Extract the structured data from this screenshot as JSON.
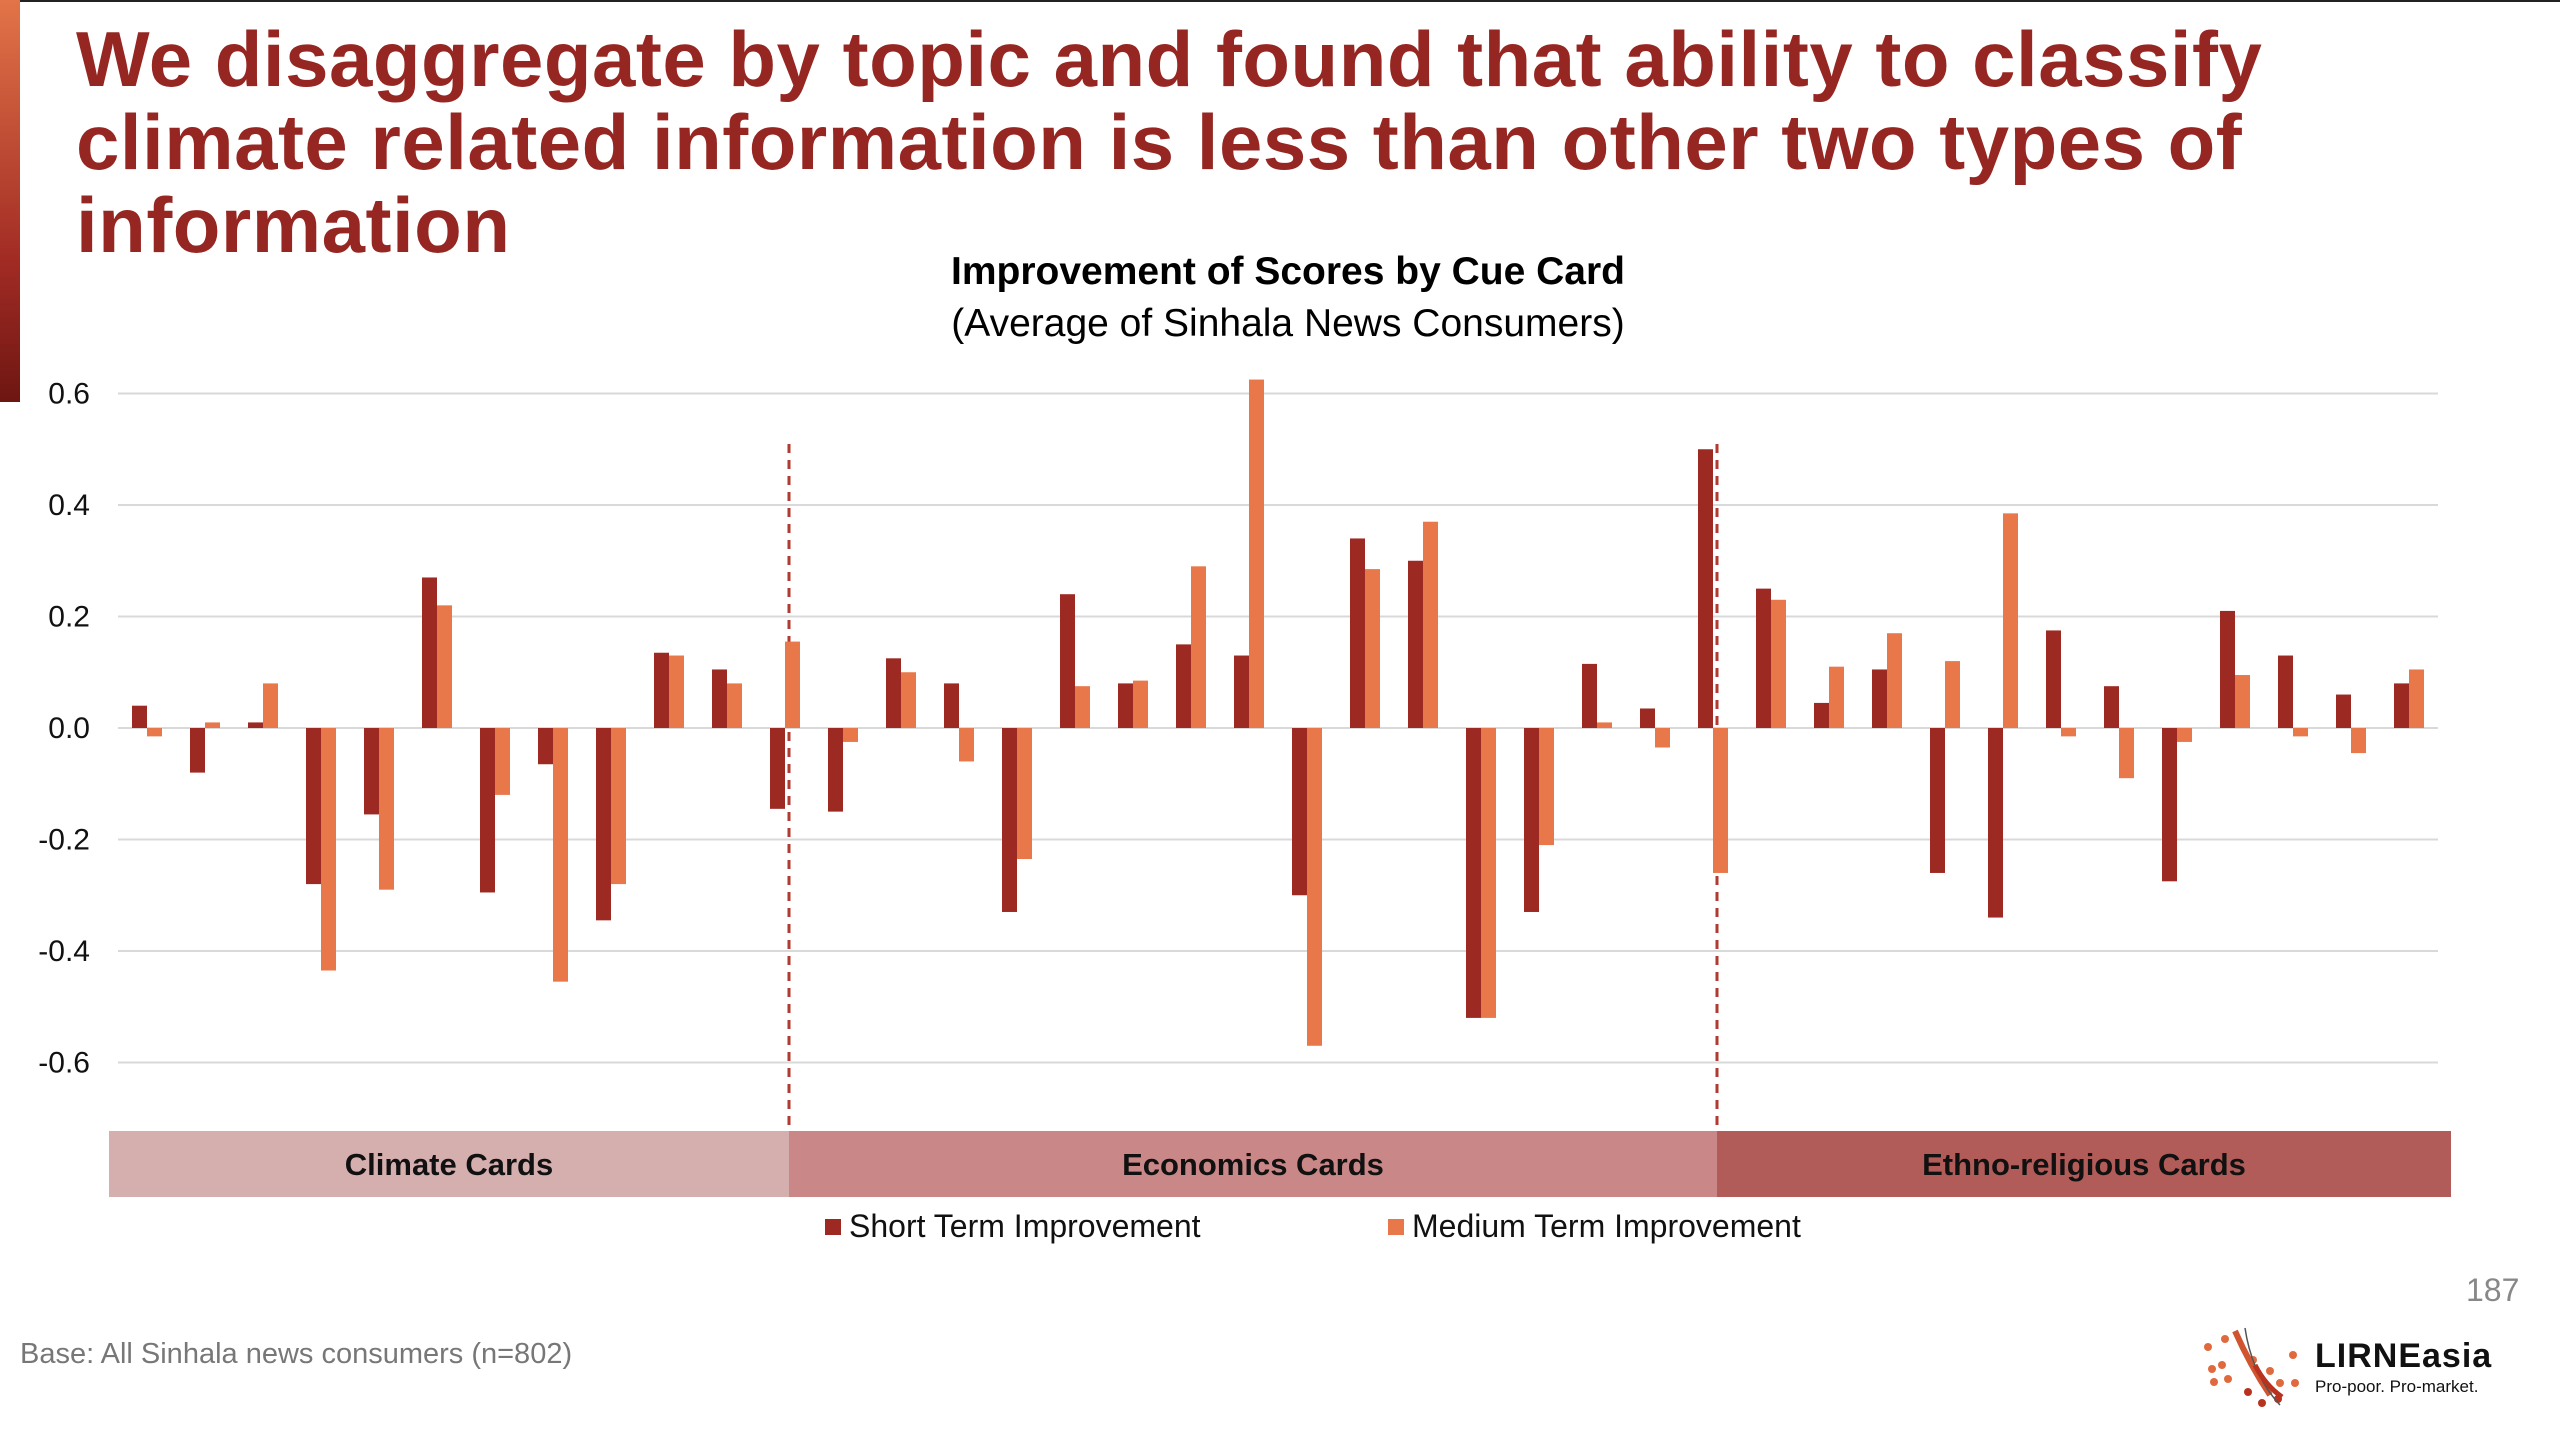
{
  "slide": {
    "title": "We disaggregate by topic and found that ability to classify climate related information is less than other two types of information",
    "page_number": "187",
    "base_note": "Base: All Sinhala news consumers (n=802)",
    "logo": {
      "name": "LIRNEasia",
      "tagline": "Pro-poor. Pro-market."
    }
  },
  "chart_data": {
    "type": "bar",
    "title": "Improvement of Scores by Cue Card",
    "subtitle": "(Average of Sinhala News Consumers)",
    "ylim": [
      -0.6,
      0.6
    ],
    "yticks": [
      "0.6",
      "0.4",
      "0.2",
      "0.0",
      "-0.2",
      "-0.4",
      "-0.6"
    ],
    "ytick_values": [
      0.6,
      0.4,
      0.2,
      0.0,
      -0.2,
      -0.4,
      -0.6
    ],
    "grid": true,
    "legend_placement": "bottom-center",
    "groups": [
      {
        "label": "Climate Cards",
        "count": 12,
        "color": "#d5aeae"
      },
      {
        "label": "Economics Cards",
        "count": 16,
        "color": "#c98887"
      },
      {
        "label": "Ethno-religious Cards",
        "count": 12,
        "color": "#b15c58"
      }
    ],
    "series": [
      {
        "name": "Short Term Improvement",
        "color": "#9c2a22",
        "values": [
          0.04,
          -0.08,
          0.01,
          -0.28,
          -0.155,
          0.27,
          -0.295,
          -0.065,
          -0.345,
          0.135,
          0.105,
          -0.145,
          -0.15,
          0.125,
          0.08,
          -0.33,
          0.24,
          0.08,
          0.15,
          0.13,
          -0.3,
          0.34,
          0.3,
          -0.52,
          -0.33,
          0.115,
          0.035,
          0.5,
          0.25,
          0.045,
          0.105,
          -0.26,
          -0.34,
          0.175,
          0.075,
          -0.275,
          0.21,
          0.13,
          0.06,
          0.08
        ]
      },
      {
        "name": "Medium Term Improvement",
        "color": "#e8774a",
        "values": [
          -0.015,
          0.01,
          0.08,
          -0.435,
          -0.29,
          0.22,
          -0.12,
          -0.455,
          -0.28,
          0.13,
          0.08,
          0.155,
          -0.025,
          0.1,
          -0.06,
          -0.235,
          0.075,
          0.085,
          0.29,
          0.625,
          -0.57,
          0.285,
          0.37,
          -0.52,
          -0.21,
          0.01,
          -0.035,
          -0.26,
          0.23,
          0.11,
          0.17,
          0.12,
          0.385,
          -0.015,
          -0.09,
          -0.025,
          0.095,
          -0.015,
          -0.045,
          0.105
        ]
      }
    ]
  }
}
